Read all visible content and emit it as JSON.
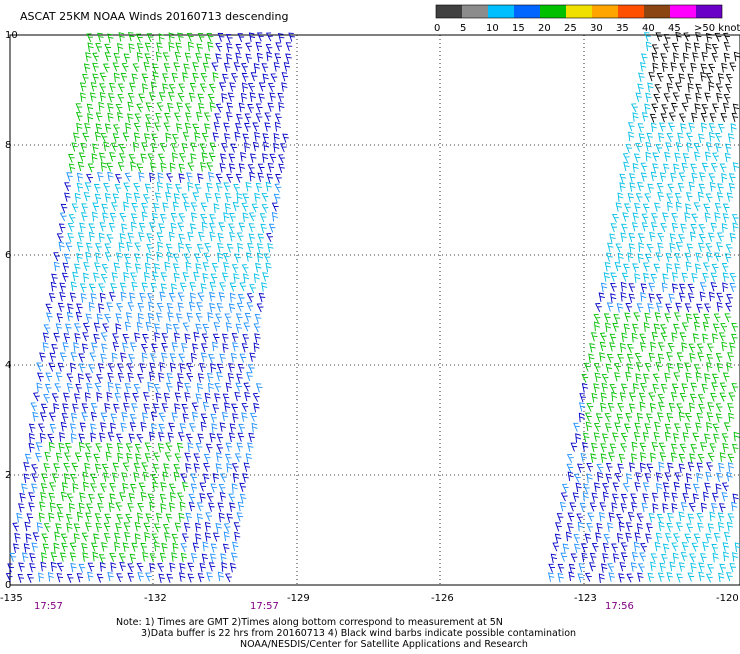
{
  "title": "ASCAT 25KM NOAA Winds 20160713 descending",
  "legend": {
    "labels": [
      "0",
      "5",
      "10",
      "15",
      "20",
      "25",
      "30",
      "35",
      "40",
      "45",
      ">50 knots"
    ],
    "colors": [
      "#404040",
      "#8c8c8c",
      "#00bfff",
      "#0066ff",
      "#00c000",
      "#f0e000",
      "#ffa500",
      "#ff5000",
      "#8b4513",
      "#ff00ff",
      "#6a00c8"
    ]
  },
  "axes": {
    "y_ticks": [
      "0",
      "2",
      "4",
      "6",
      "8",
      "10"
    ],
    "x_ticks": [
      "-135",
      "-132",
      "-129",
      "-126",
      "-123",
      "-120"
    ],
    "times": [
      "17:57",
      "17:57",
      "17:56"
    ]
  },
  "notes": {
    "line1": "Note: 1) Times are GMT 2)Times along bottom correspond to measurement at 5N",
    "line2": "3)Data buffer is 22 hrs from 20160713 4) Black wind barbs indicate possible contamination",
    "line3": "NOAA/NESDIS/Center for Satellite Applications and Research"
  },
  "colors": {
    "barb_blue": "#0000c8",
    "barb_lightblue": "#1e90ff",
    "barb_cyan": "#00bfe6",
    "barb_green": "#00c000",
    "barb_black": "#000000",
    "time_label": "#800080"
  }
}
